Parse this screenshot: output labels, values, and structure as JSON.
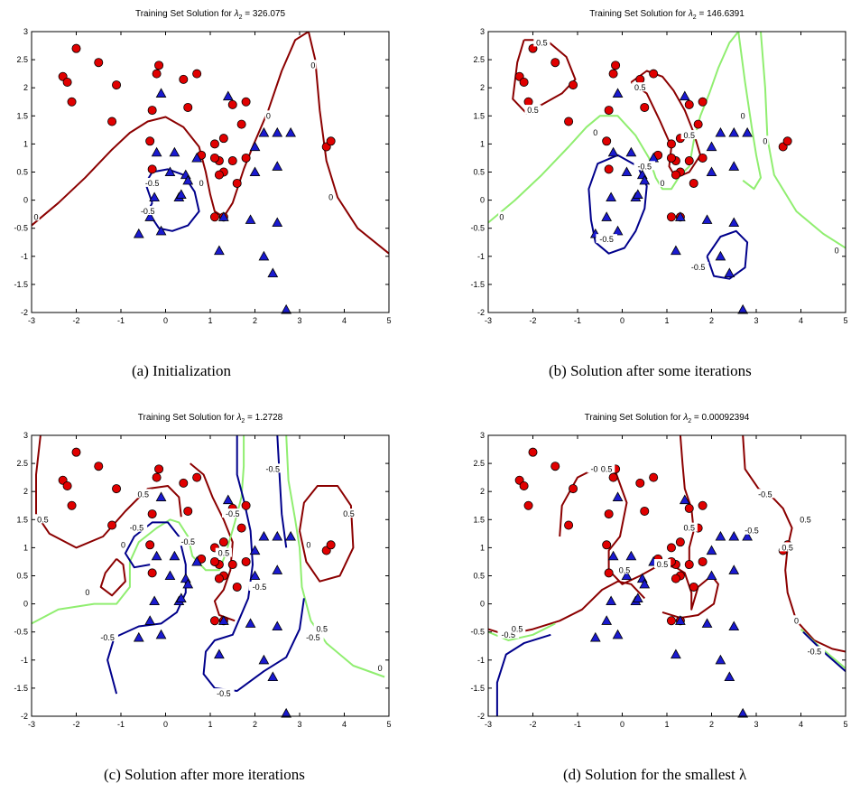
{
  "figure": {
    "captions": [
      {
        "label": "(a)",
        "text": "Initialization"
      },
      {
        "label": "(b)",
        "text": "Solution after some iterations"
      },
      {
        "label": "(c)",
        "text": "Solution after more iterations"
      },
      {
        "label": "(d)",
        "text": "Solution for the smallest λ"
      }
    ]
  },
  "colors": {
    "class_pos": "#e00000",
    "class_neg": "#1a1ad0",
    "contour_pos": "#8b0000",
    "contour_zero": "#90ee70",
    "contour_neg": "#00008b"
  },
  "chart_data": [
    {
      "type": "scatter",
      "title_prefix": "Training Set Solution for ",
      "lambda_value": "326.075",
      "xlim": [
        -3,
        5
      ],
      "ylim": [
        -2,
        3
      ],
      "xticks": [
        -3,
        -2,
        -1,
        0,
        1,
        2,
        3,
        4,
        5
      ],
      "yticks": [
        -2,
        -1.5,
        -1,
        -0.5,
        0,
        0.5,
        1,
        1.5,
        2,
        2.5,
        3
      ],
      "contour_labels": [
        {
          "text": "0",
          "x": -2.9,
          "y": -0.3
        },
        {
          "text": "0",
          "x": 2.3,
          "y": 1.5
        },
        {
          "text": "0",
          "x": 3.3,
          "y": 2.4
        },
        {
          "text": "0",
          "x": 3.7,
          "y": 0.05
        },
        {
          "text": "0",
          "x": 0.8,
          "y": 0.3
        },
        {
          "text": "-0.5",
          "x": -0.3,
          "y": 0.3
        },
        {
          "text": "-0.5",
          "x": -0.4,
          "y": -0.2
        }
      ]
    },
    {
      "type": "scatter",
      "title_prefix": "Training Set Solution for ",
      "lambda_value": "146.6391",
      "xlim": [
        -3,
        5
      ],
      "ylim": [
        -2,
        3
      ],
      "xticks": [
        -3,
        -2,
        -1,
        0,
        1,
        2,
        3,
        4,
        5
      ],
      "yticks": [
        -2,
        -1.5,
        -1,
        -0.5,
        0,
        0.5,
        1,
        1.5,
        2,
        2.5,
        3
      ],
      "contour_labels": [
        {
          "text": "0.5",
          "x": -1.8,
          "y": 2.8
        },
        {
          "text": "0.5",
          "x": -2.0,
          "y": 1.6
        },
        {
          "text": "0",
          "x": -0.6,
          "y": 1.2
        },
        {
          "text": "0",
          "x": -2.7,
          "y": -0.3
        },
        {
          "text": "0",
          "x": 3.2,
          "y": 1.05
        },
        {
          "text": "0",
          "x": 2.7,
          "y": 1.5
        },
        {
          "text": "0",
          "x": 4.8,
          "y": -0.9
        },
        {
          "text": "0",
          "x": 0.9,
          "y": 0.3
        },
        {
          "text": "-0.5",
          "x": 0.5,
          "y": 0.6
        },
        {
          "text": "-0.5",
          "x": -0.35,
          "y": -0.7
        },
        {
          "text": "-0.5",
          "x": 1.7,
          "y": -1.2
        },
        {
          "text": "0.5",
          "x": 1.5,
          "y": 1.15
        },
        {
          "text": "0.5",
          "x": 0.4,
          "y": 2.0
        }
      ]
    },
    {
      "type": "scatter",
      "title_prefix": "Training Set Solution for ",
      "lambda_value": "1.2728",
      "xlim": [
        -3,
        5
      ],
      "ylim": [
        -2,
        3
      ],
      "xticks": [
        -3,
        -2,
        -1,
        0,
        1,
        2,
        3,
        4,
        5
      ],
      "yticks": [
        -2,
        -1.5,
        -1,
        -0.5,
        0,
        0.5,
        1,
        1.5,
        2,
        2.5,
        3
      ],
      "contour_labels": [
        {
          "text": "0.5",
          "x": -2.75,
          "y": 1.5
        },
        {
          "text": "0.5",
          "x": -0.5,
          "y": 1.95
        },
        {
          "text": "-0.5",
          "x": -0.65,
          "y": 1.35
        },
        {
          "text": "0",
          "x": -0.95,
          "y": 1.05
        },
        {
          "text": "0",
          "x": -1.75,
          "y": 0.2
        },
        {
          "text": "-0.5",
          "x": -1.3,
          "y": -0.6
        },
        {
          "text": "-0.5",
          "x": 0.5,
          "y": 1.1
        },
        {
          "text": "-0.5",
          "x": 2.4,
          "y": 2.4
        },
        {
          "text": "0",
          "x": 3.2,
          "y": 1.05
        },
        {
          "text": "-0.5",
          "x": 3.3,
          "y": -0.6
        },
        {
          "text": "0.5",
          "x": 4.1,
          "y": 1.6
        },
        {
          "text": "0.5",
          "x": 3.5,
          "y": -0.45
        },
        {
          "text": "-0.5",
          "x": 2.1,
          "y": 0.3
        },
        {
          "text": "0",
          "x": 4.8,
          "y": -1.15
        },
        {
          "text": "-0.5",
          "x": 1.3,
          "y": -1.6
        },
        {
          "text": "-0.5",
          "x": 1.5,
          "y": 1.6
        },
        {
          "text": "0.5",
          "x": 1.3,
          "y": 0.9
        }
      ]
    },
    {
      "type": "scatter",
      "title_prefix": "Training Set Solution for ",
      "lambda_value": "0.00092394",
      "xlim": [
        -3,
        5
      ],
      "ylim": [
        -2,
        3
      ],
      "xticks": [
        -3,
        -2,
        -1,
        0,
        1,
        2,
        3,
        4,
        5
      ],
      "yticks": [
        -2,
        -1.5,
        -1,
        -0.5,
        0,
        0.5,
        1,
        1.5,
        2,
        2.5,
        3
      ],
      "contour_labels": [
        {
          "text": "-0.5",
          "x": -0.55,
          "y": 2.4
        },
        {
          "text": "0.5",
          "x": -0.35,
          "y": 2.4
        },
        {
          "text": "0.5",
          "x": 4.1,
          "y": 1.5
        },
        {
          "text": "0.5",
          "x": 3.7,
          "y": 1.0
        },
        {
          "text": "-0.5",
          "x": 3.2,
          "y": 1.95
        },
        {
          "text": "0.5",
          "x": 1.5,
          "y": 1.35
        },
        {
          "text": "0.5",
          "x": 0.05,
          "y": 0.6
        },
        {
          "text": "0.5",
          "x": 0.9,
          "y": 0.7
        },
        {
          "text": "-0.5",
          "x": 2.9,
          "y": 1.3
        },
        {
          "text": "-0.5",
          "x": -2.55,
          "y": -0.55
        },
        {
          "text": "0.5",
          "x": -2.35,
          "y": -0.45
        },
        {
          "text": "0",
          "x": 3.9,
          "y": -0.3
        },
        {
          "text": "-0.5",
          "x": 4.3,
          "y": -0.85
        }
      ]
    }
  ],
  "points": {
    "pos": [
      [
        -2.3,
        2.2
      ],
      [
        -2.0,
        2.7
      ],
      [
        -2.2,
        2.1
      ],
      [
        -2.1,
        1.75
      ],
      [
        -1.5,
        2.45
      ],
      [
        -1.2,
        1.4
      ],
      [
        -1.1,
        2.05
      ],
      [
        -0.3,
        1.6
      ],
      [
        -0.15,
        2.4
      ],
      [
        -0.2,
        2.25
      ],
      [
        0.4,
        2.15
      ],
      [
        0.7,
        2.25
      ],
      [
        0.5,
        1.65
      ],
      [
        0.8,
        0.8
      ],
      [
        1.1,
        1.0
      ],
      [
        1.2,
        0.7
      ],
      [
        1.3,
        0.5
      ],
      [
        1.5,
        0.7
      ],
      [
        1.6,
        0.3
      ],
      [
        1.7,
        1.35
      ],
      [
        1.8,
        0.75
      ],
      [
        1.2,
        0.45
      ],
      [
        1.1,
        -0.3
      ],
      [
        1.3,
        -0.3
      ],
      [
        -0.35,
        1.05
      ],
      [
        -0.3,
        0.55
      ],
      [
        1.8,
        1.75
      ],
      [
        1.3,
        1.1
      ],
      [
        3.6,
        0.95
      ],
      [
        3.7,
        1.05
      ],
      [
        1.5,
        1.7
      ],
      [
        1.1,
        0.75
      ]
    ],
    "neg": [
      [
        -0.1,
        1.9
      ],
      [
        -0.6,
        -0.6
      ],
      [
        -0.35,
        -0.3
      ],
      [
        -0.1,
        -0.55
      ],
      [
        -0.2,
        0.85
      ],
      [
        0.2,
        0.85
      ],
      [
        0.3,
        0.05
      ],
      [
        0.45,
        0.45
      ],
      [
        0.7,
        0.75
      ],
      [
        0.1,
        0.5
      ],
      [
        0.35,
        0.1
      ],
      [
        1.4,
        1.85
      ],
      [
        2.0,
        0.95
      ],
      [
        2.2,
        1.2
      ],
      [
        2.5,
        1.2
      ],
      [
        2.8,
        1.2
      ],
      [
        2.5,
        0.6
      ],
      [
        2.0,
        0.5
      ],
      [
        1.9,
        -0.35
      ],
      [
        2.5,
        -0.4
      ],
      [
        2.2,
        -1.0
      ],
      [
        2.4,
        -1.3
      ],
      [
        2.7,
        -1.95
      ],
      [
        1.2,
        -0.9
      ],
      [
        1.3,
        -0.3
      ],
      [
        -0.25,
        0.05
      ],
      [
        0.5,
        0.35
      ]
    ]
  }
}
